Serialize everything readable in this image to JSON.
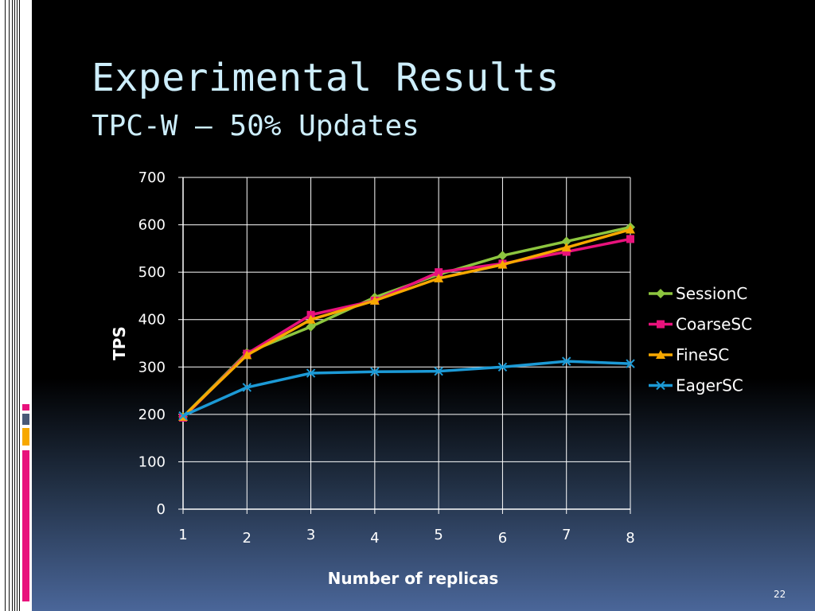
{
  "slide": {
    "title": "Experimental Results",
    "subtitle": "TPC-W – 50% Updates",
    "page_number": "22"
  },
  "chart_data": {
    "type": "line",
    "x": [
      1,
      2,
      3,
      4,
      5,
      6,
      7,
      8
    ],
    "xlabel": "Number of replicas",
    "ylabel": "TPS",
    "ylim": [
      0,
      700
    ],
    "yticks": [
      0,
      100,
      200,
      300,
      400,
      500,
      600,
      700
    ],
    "grid": true,
    "legend_position": "right",
    "series": [
      {
        "name": "SessionC",
        "color": "#8dc63f",
        "marker": "diamond",
        "values": [
          195,
          330,
          385,
          447,
          495,
          535,
          565,
          595
        ]
      },
      {
        "name": "CoarseSC",
        "color": "#e8127c",
        "marker": "square",
        "values": [
          193,
          328,
          410,
          440,
          500,
          518,
          543,
          570
        ]
      },
      {
        "name": "FineSC",
        "color": "#f7a800",
        "marker": "triangle",
        "values": [
          195,
          325,
          400,
          440,
          487,
          516,
          552,
          590
        ]
      },
      {
        "name": "EagerSC",
        "color": "#1c9ad6",
        "marker": "x",
        "values": [
          197,
          257,
          287,
          290,
          291,
          300,
          312,
          307
        ]
      }
    ]
  }
}
